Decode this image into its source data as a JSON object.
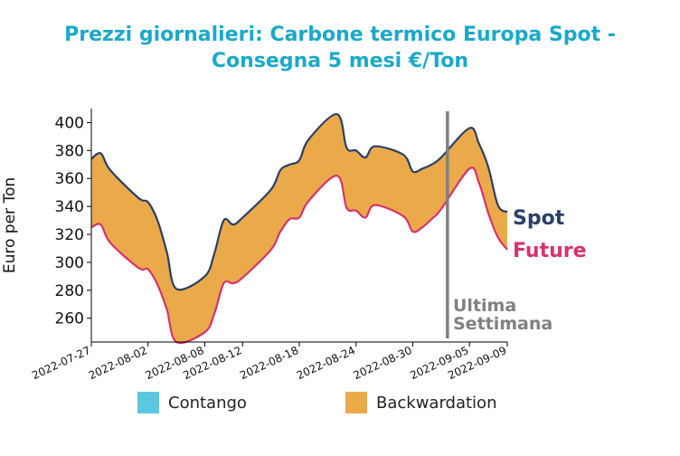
{
  "chart_data": {
    "type": "area",
    "title_line1": "Prezzi giornalieri: Carbone termico Europa Spot -",
    "title_line2": "Consegna 5 mesi €/Ton",
    "ylabel": "Euro per Ton",
    "ylim": [
      243,
      410
    ],
    "yticks": [
      260,
      280,
      300,
      320,
      340,
      360,
      380,
      400
    ],
    "xticks": [
      "2022-07-27",
      "2022-08-02",
      "2022-08-08",
      "2022-08-12",
      "2022-08-18",
      "2022-08-24",
      "2022-08-30",
      "2022-09-05",
      "2022-09-09"
    ],
    "x": [
      "2022-07-27",
      "2022-07-28",
      "2022-07-29",
      "2022-08-01",
      "2022-08-02",
      "2022-08-03",
      "2022-08-04",
      "2022-08-05",
      "2022-08-08",
      "2022-08-09",
      "2022-08-10",
      "2022-08-11",
      "2022-08-12",
      "2022-08-15",
      "2022-08-16",
      "2022-08-17",
      "2022-08-18",
      "2022-08-19",
      "2022-08-22",
      "2022-08-23",
      "2022-08-24",
      "2022-08-25",
      "2022-08-26",
      "2022-08-29",
      "2022-08-30",
      "2022-08-31",
      "2022-09-01",
      "2022-09-02",
      "2022-09-05",
      "2022-09-06",
      "2022-09-07",
      "2022-09-08",
      "2022-09-09"
    ],
    "series": [
      {
        "name": "Spot",
        "color": "#2b3f66",
        "values": [
          374,
          378,
          366,
          346,
          343,
          330,
          307,
          281,
          290,
          306,
          330,
          327,
          332,
          352,
          366,
          370,
          373,
          388,
          406,
          382,
          380,
          375,
          383,
          377,
          365,
          367,
          370,
          375,
          396,
          385,
          368,
          341,
          336
        ]
      },
      {
        "name": "Future",
        "color": "#d6336c",
        "values": [
          325,
          327,
          314,
          296,
          295,
          284,
          266,
          243,
          250,
          263,
          285,
          285,
          289,
          309,
          322,
          331,
          332,
          344,
          362,
          339,
          337,
          332,
          341,
          333,
          322,
          325,
          331,
          338,
          367,
          357,
          335,
          318,
          309
        ]
      }
    ],
    "annotation": [
      "Ultima",
      "Settimana"
    ],
    "annotation_x": "2022-09-02",
    "legend": [
      {
        "label": "Contango",
        "color": "#5bc8e0"
      },
      {
        "label": "Backwardation",
        "color": "#eaaa4a"
      }
    ],
    "fill_color": "#eaaa4a",
    "line_color_vertical": "#808080"
  }
}
